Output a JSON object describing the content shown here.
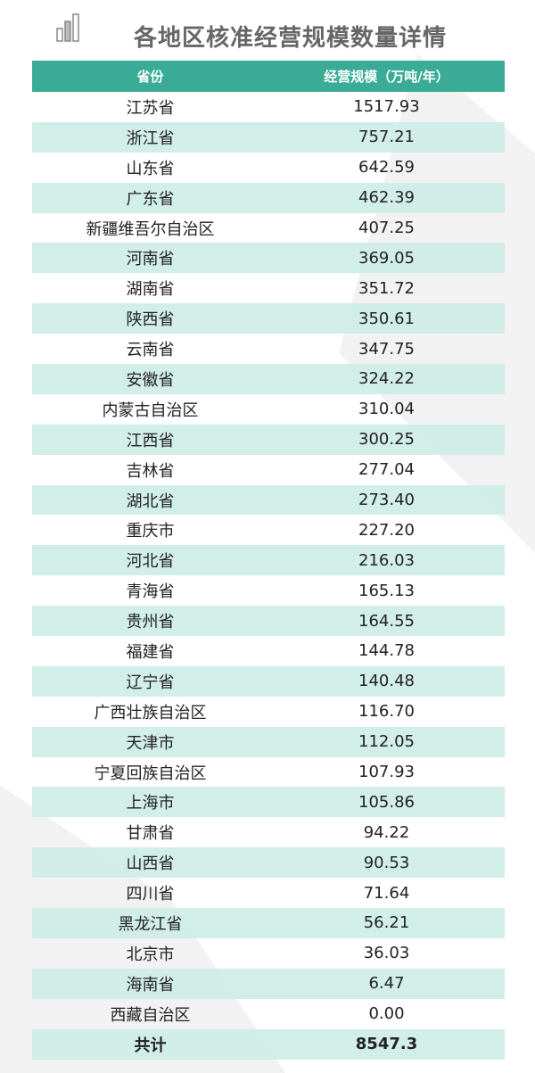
{
  "title": "各地区核准经营规模数量详情",
  "logo_icon": "bar-chart-icon",
  "colors": {
    "header": "#3aab96",
    "stripe": "#cdece6"
  },
  "table": {
    "headers": [
      "省份",
      "经营规模（万吨/年）"
    ],
    "rows": [
      [
        "江苏省",
        "1517.93"
      ],
      [
        "浙江省",
        "757.21"
      ],
      [
        "山东省",
        "642.59"
      ],
      [
        "广东省",
        "462.39"
      ],
      [
        "新疆维吾尔自治区",
        "407.25"
      ],
      [
        "河南省",
        "369.05"
      ],
      [
        "湖南省",
        "351.72"
      ],
      [
        "陕西省",
        "350.61"
      ],
      [
        "云南省",
        "347.75"
      ],
      [
        "安徽省",
        "324.22"
      ],
      [
        "内蒙古自治区",
        "310.04"
      ],
      [
        "江西省",
        "300.25"
      ],
      [
        "吉林省",
        "277.04"
      ],
      [
        "湖北省",
        "273.40"
      ],
      [
        "重庆市",
        "227.20"
      ],
      [
        "河北省",
        "216.03"
      ],
      [
        "青海省",
        "165.13"
      ],
      [
        "贵州省",
        "164.55"
      ],
      [
        "福建省",
        "144.78"
      ],
      [
        "辽宁省",
        "140.48"
      ],
      [
        "广西壮族自治区",
        "116.70"
      ],
      [
        "天津市",
        "112.05"
      ],
      [
        "宁夏回族自治区",
        "107.93"
      ],
      [
        "上海市",
        "105.86"
      ],
      [
        "甘肃省",
        "94.22"
      ],
      [
        "山西省",
        "90.53"
      ],
      [
        "四川省",
        "71.64"
      ],
      [
        "黑龙江省",
        "56.21"
      ],
      [
        "北京市",
        "36.03"
      ],
      [
        "海南省",
        "6.47"
      ],
      [
        "西藏自治区",
        "0.00"
      ]
    ],
    "total": [
      "共计",
      "8547.3"
    ]
  }
}
